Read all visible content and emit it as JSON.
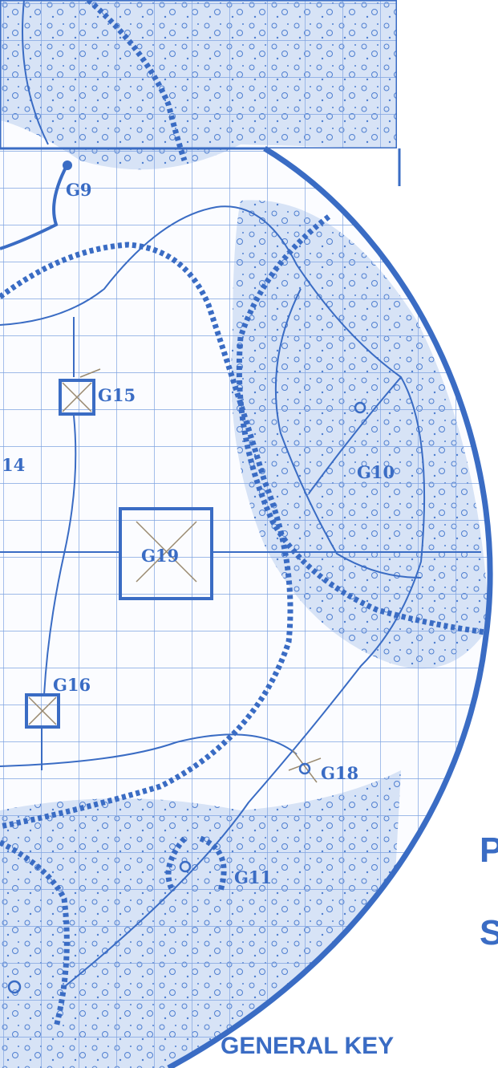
{
  "map": {
    "labels": [
      "G9",
      "G15",
      "14",
      "G10",
      "G19",
      "G16",
      "G18",
      "G11"
    ]
  },
  "side_letters": [
    "P",
    "S"
  ],
  "legend_heading": "GENERAL KEY"
}
